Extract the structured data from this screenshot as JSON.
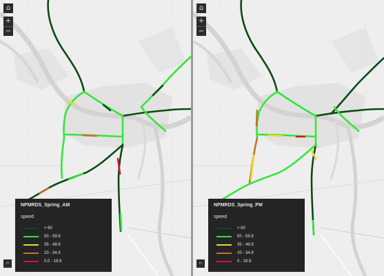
{
  "maps": [
    {
      "id": "am",
      "legend_title": "NPMRDS_Spring_AM",
      "field_label": "speed",
      "classes": [
        {
          "label": "> 60",
          "color": "#0b4a14"
        },
        {
          "label": "50 - 59.9",
          "color": "#34e63a"
        },
        {
          "label": "35 - 49.9",
          "color": "#e6dc2a"
        },
        {
          "label": "20 - 34.9",
          "color": "#c9702e"
        },
        {
          "label": "0.0 - 19.9",
          "color": "#cc1a2c"
        }
      ]
    },
    {
      "id": "pm",
      "legend_title": "NPMRDS_Spring_PM",
      "field_label": "speed",
      "classes": [
        {
          "label": "> 60",
          "color": "#0b4a14"
        },
        {
          "label": "50 - 59.9",
          "color": "#34e63a"
        },
        {
          "label": "35 - 49.9",
          "color": "#e6dc2a"
        },
        {
          "label": "20 - 34.9",
          "color": "#c9702e"
        },
        {
          "label": "0 - 19.9",
          "color": "#cc1a2c"
        }
      ]
    }
  ],
  "controls": {
    "home_icon": "home-icon",
    "zoom_in": "+",
    "zoom_out": "−",
    "collapse_icon": "‹‹"
  }
}
